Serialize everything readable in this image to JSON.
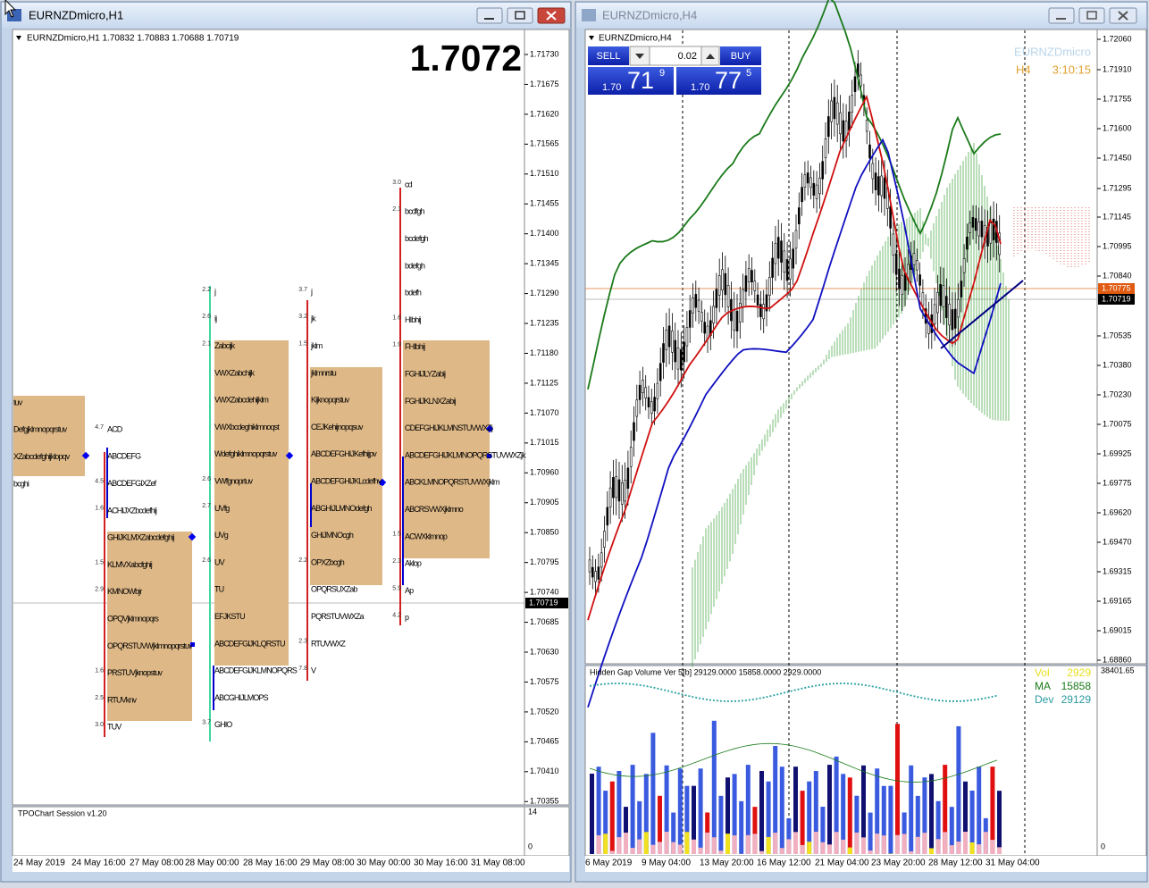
{
  "left": {
    "title": "EURNZDmicro,H1",
    "header": "EURNZDmicro,H1  1.70832 1.70883 1.70688 1.70719",
    "big_price": "1.7072",
    "price_labels": [
      "1.71730",
      "1.71675",
      "1.71620",
      "1.71565",
      "1.71510",
      "1.71455",
      "1.71400",
      "1.71345",
      "1.71290",
      "1.71235",
      "1.71180",
      "1.71125",
      "1.71070",
      "1.71015",
      "1.70960",
      "1.70905",
      "1.70850",
      "1.70795",
      "1.70740",
      "1.70685",
      "1.70630",
      "1.70575",
      "1.70520",
      "1.70465",
      "1.70410",
      "1.70355"
    ],
    "current_price": "1.70719",
    "dates": [
      "24 May 2019",
      "24 May 16:00",
      "27 May 08:00",
      "28 May 00:00",
      "28 May 16:00",
      "29 May 08:00",
      "30 May 00:00",
      "30 May 16:00",
      "31 May 08:00"
    ],
    "indicator": {
      "label": "TPOChart Session v1.20",
      "scale": [
        "14",
        "0"
      ]
    },
    "profiles": [
      {
        "rows": [
          {
            "text": "tuv"
          },
          {
            "text": "Defgjklmnopqrstuv"
          },
          {
            "text": "XZabcdefghijklopqv"
          },
          {
            "text": "bcghi"
          }
        ]
      },
      {
        "rows": [
          {
            "text": "ACD",
            "num": "4.7"
          },
          {
            "text": "ABCDEFG"
          },
          {
            "text": "ABCDEFGIXZef",
            "num": "4.5"
          },
          {
            "text": "ACHIJXZbcdefhij",
            "num": "1.6"
          },
          {
            "text": "GHIJKLMXZabcdefghij"
          },
          {
            "text": "KLMVXabcfghij",
            "num": "1.5"
          },
          {
            "text": "KMNOWbjr",
            "num": "2.9"
          },
          {
            "text": "OPQVjklmnopqrs"
          },
          {
            "text": "OPQRSTUVWjklmnopqrstuv"
          },
          {
            "text": "PRSTUVjknopstuv",
            "num": "1.6"
          },
          {
            "text": "RTUVknv",
            "num": "2.5"
          },
          {
            "text": "TUV",
            "num": "3.0"
          }
        ]
      },
      {
        "rows": [
          {
            "text": "j",
            "num": "2.2"
          },
          {
            "text": "ij",
            "num": "2.6"
          },
          {
            "text": "Zabcijk",
            "num": "2.1"
          },
          {
            "text": "VWXZabchijk"
          },
          {
            "text": "VWXZabcdehijklm"
          },
          {
            "text": "VWXbcdeghiklmnoqst"
          },
          {
            "text": "Wdefghiklmnopqrstuv"
          },
          {
            "text": "VWfgnoprtuv",
            "num": "2.6"
          },
          {
            "text": "UVfg",
            "num": "2.7"
          },
          {
            "text": "UVg"
          },
          {
            "text": "UV",
            "num": "2.6"
          },
          {
            "text": "TU"
          },
          {
            "text": "EFJKSTU"
          },
          {
            "text": "ABCDEFGIJKLQRSTU"
          },
          {
            "text": "ABCDEFGIJKLMNOPQRS"
          },
          {
            "text": "ABCGHIJLMOPS"
          },
          {
            "text": "GHIO",
            "num": "3.7"
          }
        ]
      },
      {
        "rows": [
          {
            "text": "j",
            "num": "3.7"
          },
          {
            "text": "jk",
            "num": "3.2"
          },
          {
            "text": "jklm",
            "num": "1.5"
          },
          {
            "text": "jklmnrstu"
          },
          {
            "text": "Kijknopqrstuv"
          },
          {
            "text": "CEJKehijnopqsuv"
          },
          {
            "text": "ABCDEFGHIJKefhijpv"
          },
          {
            "text": "ABCDEFGHIJKLcdefhv"
          },
          {
            "text": "ABGHIJLMNOdefgh"
          },
          {
            "text": "GHIJMNOcgh"
          },
          {
            "text": "OPXZbcgh",
            "num": "2.2"
          },
          {
            "text": "OPQRSUXZab"
          },
          {
            "text": "PQRSTUVWXZa"
          },
          {
            "text": "RTUVWXZ",
            "num": "2.3"
          },
          {
            "text": "V",
            "num": "7.8"
          }
        ]
      },
      {
        "rows": [
          {
            "text": "cd",
            "num": "3.0"
          },
          {
            "text": "bcdfgh",
            "num": "2.1"
          },
          {
            "text": "bcdefgh"
          },
          {
            "text": "bdefgh"
          },
          {
            "text": "bdefh"
          },
          {
            "text": "HIbhij",
            "num": "1.6"
          },
          {
            "text": "FHIbhij",
            "num": "1.9"
          },
          {
            "text": "FGHIJLYZabij"
          },
          {
            "text": "FGHIJKLNXZabij"
          },
          {
            "text": "CDEFGHIJKLMNSTUVWXZj"
          },
          {
            "text": "ABCDEFGHIJKLMNOPQRSTUVWXZjk"
          },
          {
            "text": "ABCKLMNOPQRSTUVWXjklm"
          },
          {
            "text": "ABCRSVWXjklmno"
          },
          {
            "text": "ACWXklmnop",
            "num": "1.5"
          },
          {
            "text": "Aklop",
            "num": "2.3"
          },
          {
            "text": "Ap",
            "num": "5.9"
          },
          {
            "text": "p",
            "num": "4.2"
          }
        ]
      }
    ]
  },
  "right": {
    "title": "EURNZDmicro,H4",
    "header": "EURNZDmicro,H4",
    "trade": {
      "sell": "SELL",
      "lot": "0.02",
      "buy": "BUY",
      "sell_price": {
        "big": "1.70",
        "pips": "71",
        "frac": "9"
      },
      "buy_price": {
        "big": "1.70",
        "pips": "77",
        "frac": "5"
      }
    },
    "symbol": "EURNZDmicro",
    "timeframe": "H4",
    "timer": "3:10:15",
    "price_labels": [
      "1.72060",
      "1.71910",
      "1.71755",
      "1.71600",
      "1.71450",
      "1.71295",
      "1.71145",
      "1.70995",
      "1.70840",
      "1.70535",
      "1.70380",
      "1.70230",
      "1.70075",
      "1.69925",
      "1.69775",
      "1.69620",
      "1.69470",
      "1.69315",
      "1.69165",
      "1.69015",
      "1.68860"
    ],
    "ask_price": "1.70775",
    "current_price": "1.70719",
    "dates": [
      "6 May 2019",
      "9 May 04:00",
      "13 May 20:00",
      "16 May 12:00",
      "21 May 04:00",
      "23 May 20:00",
      "28 May 12:00",
      "31 May 04:00"
    ],
    "indicator": {
      "header": "Hidden Gap Volume Ver 5[b] 29129.0000 15858.0000 2929.0000",
      "legend": [
        {
          "name": "Vol",
          "value": "2929"
        },
        {
          "name": "MA",
          "value": "15858"
        },
        {
          "name": "Dev",
          "value": "29129"
        }
      ],
      "scale": [
        "38401.65",
        "0"
      ]
    }
  }
}
